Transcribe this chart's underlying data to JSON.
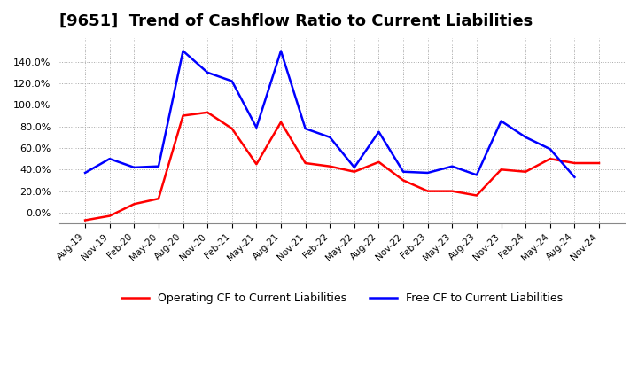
{
  "title": "[9651]  Trend of Cashflow Ratio to Current Liabilities",
  "title_fontsize": 13,
  "background_color": "#ffffff",
  "grid_color": "#aaaaaa",
  "operating_color": "#ff0000",
  "free_color": "#0000ff",
  "legend_labels": [
    "Operating CF to Current Liabilities",
    "Free CF to Current Liabilities"
  ],
  "x_labels": [
    "Aug-19",
    "Nov-19",
    "Feb-20",
    "May-20",
    "Aug-20",
    "Nov-20",
    "Feb-21",
    "May-21",
    "Aug-21",
    "Nov-21",
    "Feb-22",
    "May-22",
    "Aug-22",
    "Nov-22",
    "Feb-23",
    "May-23",
    "Aug-23",
    "Nov-23",
    "Feb-24",
    "May-24",
    "Aug-24",
    "Nov-24"
  ],
  "operating_cf": [
    -0.07,
    -0.03,
    0.08,
    0.13,
    0.9,
    0.93,
    0.78,
    0.45,
    0.84,
    0.46,
    0.43,
    0.38,
    0.47,
    0.3,
    0.2,
    0.2,
    0.16,
    0.4,
    0.38,
    0.5,
    0.46,
    0.46
  ],
  "free_cf": [
    0.37,
    0.5,
    0.42,
    0.43,
    1.5,
    1.3,
    1.22,
    0.79,
    1.5,
    0.78,
    0.7,
    0.42,
    0.75,
    0.38,
    0.37,
    0.43,
    0.35,
    0.85,
    0.7,
    0.59,
    0.33,
    null
  ],
  "ylim": [
    -0.1,
    1.62
  ],
  "yticks": [
    0.0,
    0.2,
    0.4,
    0.6,
    0.8,
    1.0,
    1.2,
    1.4
  ]
}
